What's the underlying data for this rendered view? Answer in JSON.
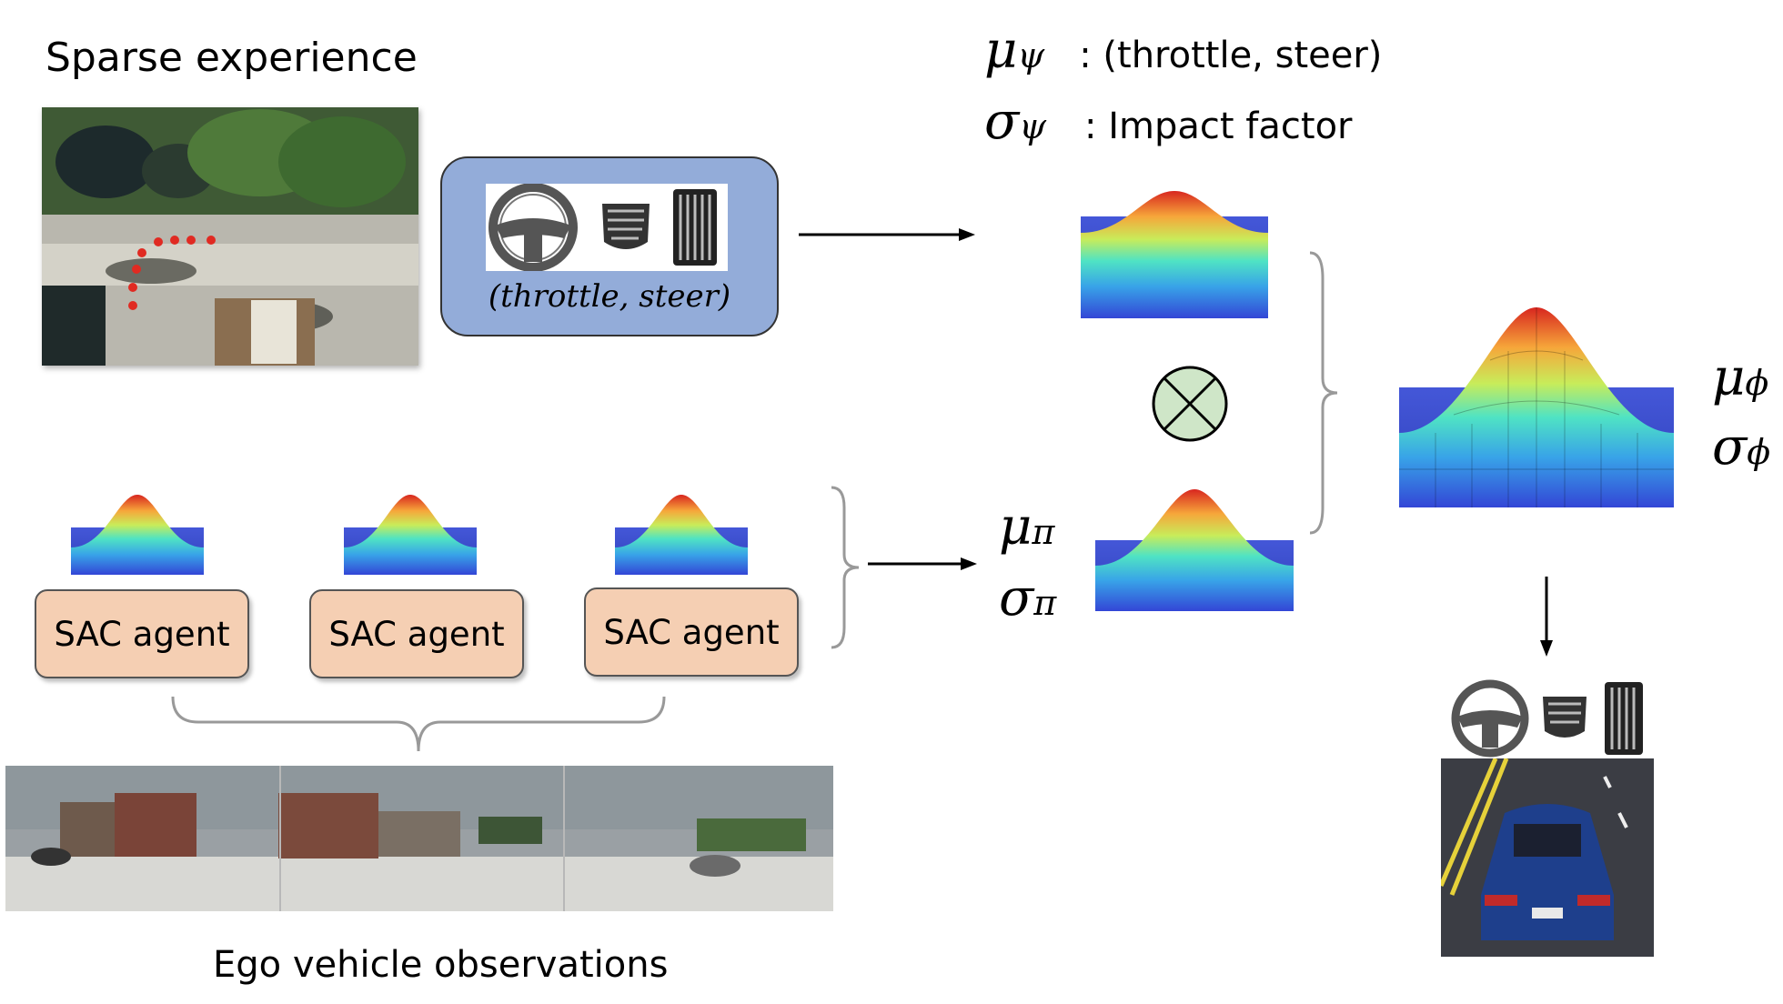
{
  "sparse_title": "Sparse experience",
  "control_label": "(throttle, steer)",
  "mu_psi_label": "μ",
  "mu_psi_sub": "ψ",
  "mu_psi_desc": ": (throttle, steer)",
  "sigma_psi_label": "σ",
  "sigma_psi_sub": "ψ",
  "sigma_psi_desc": ": Impact factor",
  "mu_pi_label": "μ",
  "mu_pi_sub": "π",
  "sigma_pi_label": "σ",
  "sigma_pi_sub": "π",
  "mu_phi_label": "μ",
  "mu_phi_sub": "ϕ",
  "sigma_phi_label": "σ",
  "sigma_phi_sub": "ϕ",
  "agents": [
    "SAC agent",
    "SAC agent",
    "SAC agent"
  ],
  "observations_caption": "Ego vehicle observations",
  "colors": {
    "agent_fill": "#f5cfb3",
    "control_fill": "#93acd9",
    "product_fill": "#cfe6c8",
    "surface_base": "#3b4fd1"
  },
  "icons": [
    "steering-wheel-icon",
    "brake-pedal-icon",
    "throttle-pedal-icon",
    "product-operator-icon"
  ]
}
